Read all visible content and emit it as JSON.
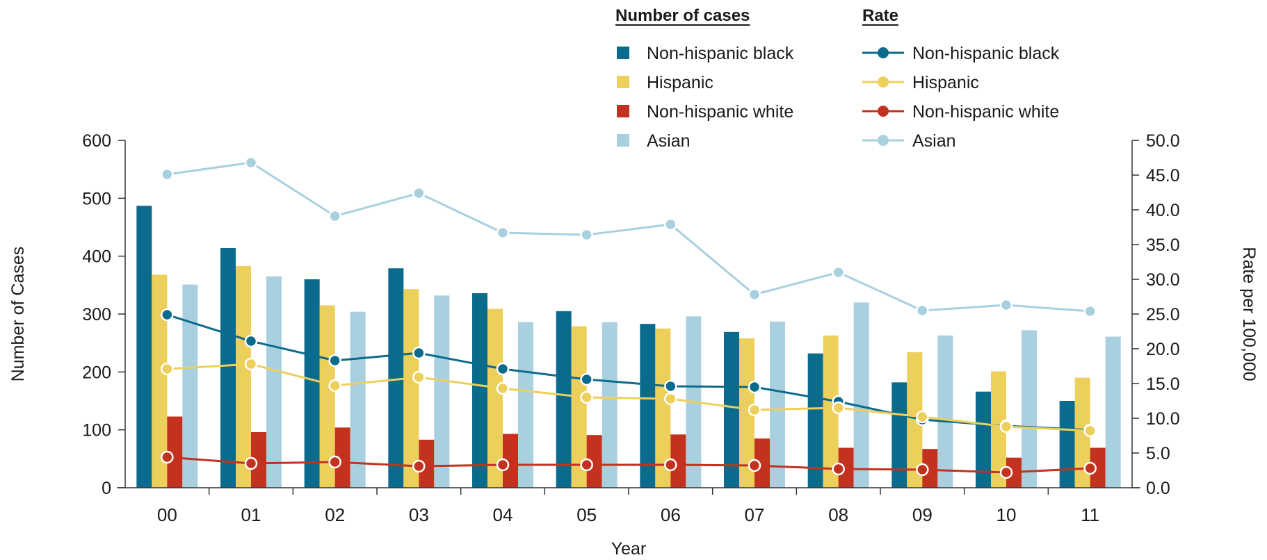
{
  "colors": {
    "non_hispanic_black": "#0b6b8c",
    "hispanic": "#edcf5b",
    "non_hispanic_white": "#c3321f",
    "asian": "#a9d0de"
  },
  "legend": {
    "cases_heading": "Number of cases",
    "rate_heading": "Rate",
    "items": [
      "Non-hispanic black",
      "Hispanic",
      "Non-hispanic white",
      "Asian"
    ]
  },
  "chart_data": {
    "type": "bar",
    "categories": [
      "00",
      "01",
      "02",
      "03",
      "04",
      "05",
      "06",
      "07",
      "08",
      "09",
      "10",
      "11"
    ],
    "xlabel": "Year",
    "ylabel": "Number of Cases",
    "y2label": "Rate per 100,000",
    "ylim": [
      0,
      600
    ],
    "y2lim": [
      0,
      50
    ],
    "yticks": [
      "0",
      "100",
      "200",
      "300",
      "400",
      "500",
      "600"
    ],
    "y2ticks": [
      "0.0",
      "5.0",
      "10.0",
      "15.0",
      "20.0",
      "25.0",
      "30.0",
      "35.0",
      "40.0",
      "45.0",
      "50.0"
    ],
    "bar_series": [
      {
        "name": "Non-hispanic black",
        "values": [
          487,
          414,
          360,
          379,
          336,
          305,
          283,
          269,
          232,
          182,
          166,
          150
        ]
      },
      {
        "name": "Hispanic",
        "values": [
          368,
          383,
          315,
          343,
          309,
          279,
          275,
          258,
          263,
          234,
          201,
          190
        ]
      },
      {
        "name": "Non-hispanic white",
        "values": [
          123,
          96,
          104,
          83,
          93,
          91,
          92,
          85,
          69,
          67,
          52,
          69
        ]
      },
      {
        "name": "Asian",
        "values": [
          351,
          365,
          304,
          332,
          286,
          286,
          296,
          287,
          320,
          263,
          272,
          261
        ]
      }
    ],
    "line_series": [
      {
        "name": "Non-hispanic black",
        "values": [
          24.9,
          21.1,
          18.3,
          19.4,
          17.1,
          15.6,
          14.6,
          14.5,
          12.4,
          9.8,
          8.9,
          8.3
        ]
      },
      {
        "name": "Hispanic",
        "values": [
          17.1,
          17.8,
          14.7,
          15.9,
          14.3,
          13.0,
          12.8,
          11.2,
          11.5,
          10.2,
          8.8,
          8.2
        ]
      },
      {
        "name": "Non-hispanic white",
        "values": [
          4.4,
          3.5,
          3.7,
          3.1,
          3.3,
          3.3,
          3.3,
          3.2,
          2.7,
          2.6,
          2.2,
          2.8
        ]
      },
      {
        "name": "Asian",
        "values": [
          45.1,
          46.8,
          39.1,
          42.4,
          36.7,
          36.4,
          37.9,
          27.8,
          31.0,
          25.5,
          26.3,
          25.4
        ]
      }
    ],
    "legend_position": "top-right",
    "grid": false
  }
}
